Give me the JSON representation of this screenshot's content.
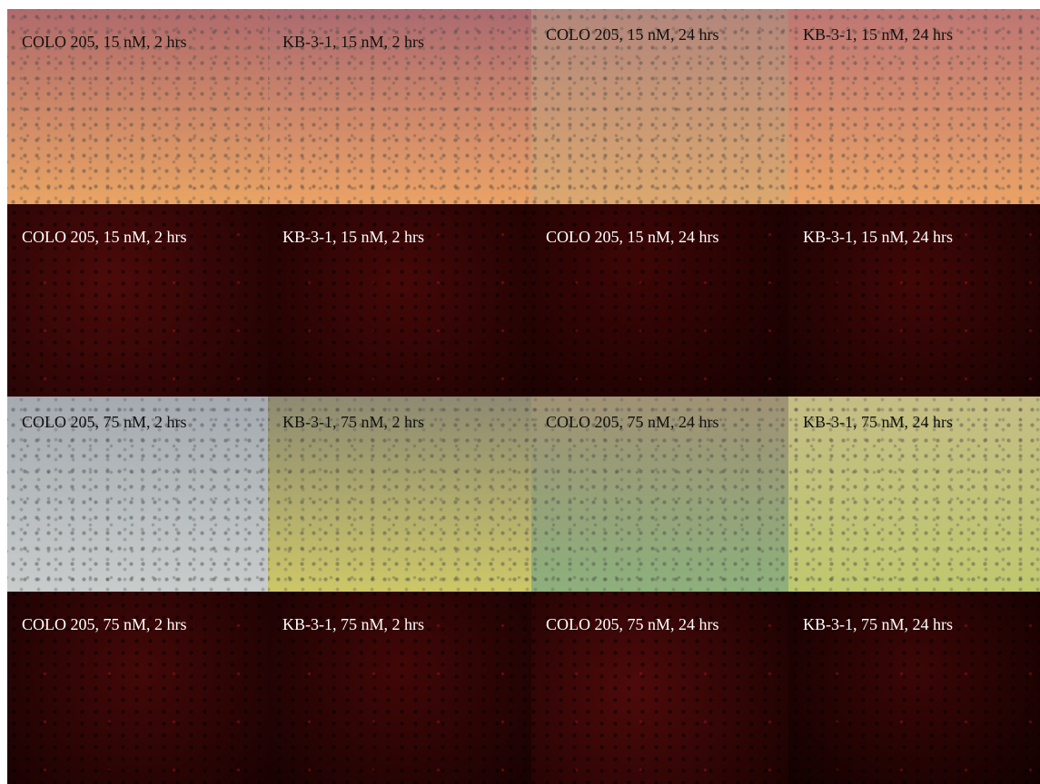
{
  "rows": [
    [
      "COLO 205, 15 nM, 2 hrs",
      "KB-3-1, 15 nM, 2 hrs",
      "COLO 205, 15 nM, 24 hrs",
      "KB-3-1, 15 nM, 24 hrs"
    ],
    [
      "COLO 205, 15 nM, 2 hrs",
      "KB-3-1, 15 nM, 2 hrs",
      "COLO 205, 15 nM, 24 hrs",
      "KB-3-1, 15 nM, 24 hrs"
    ],
    [
      "COLO 205, 75 nM, 2 hrs",
      "KB-3-1, 75 nM, 2 hrs",
      "COLO 205, 75 nM, 24 hrs",
      "KB-3-1, 75 nM, 24 hrs"
    ],
    [
      "COLO 205, 75 nM, 2 hrs",
      "KB-3-1, 75 nM, 2 hrs",
      "COLO 205, 75 nM, 24 hrs",
      "KB-3-1, 75 nM, 24 hrs"
    ]
  ]
}
